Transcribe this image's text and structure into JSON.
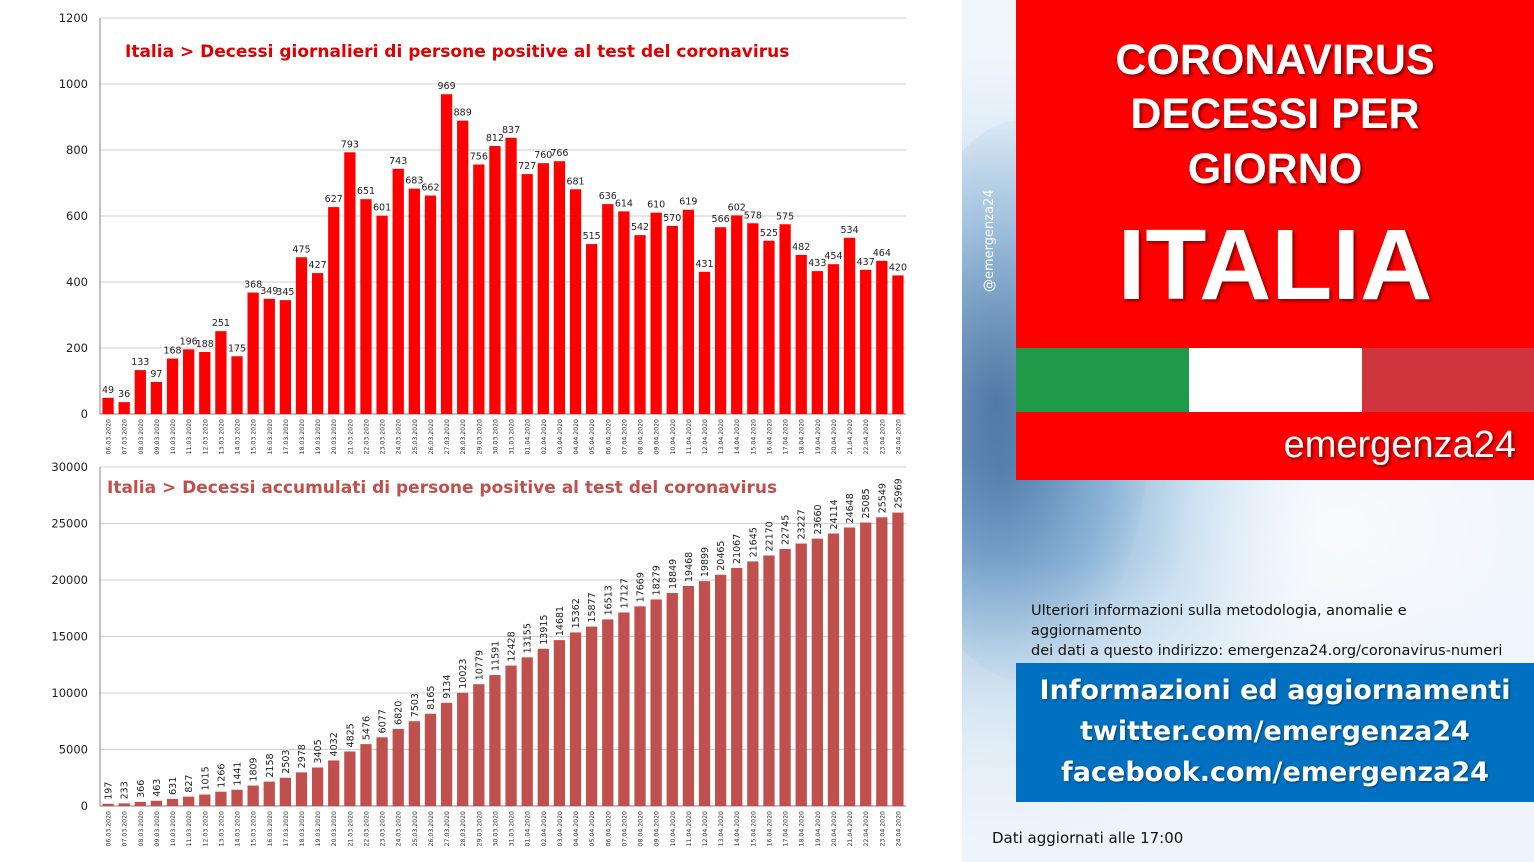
{
  "panel": {
    "handle": "@emergenza24",
    "title_line1": "CORONAVIRUS",
    "title_line2": "DECESSI PER",
    "title_line3": "GIORNO",
    "country": "ITALIA",
    "brand": "emergenza24",
    "info_line1": "Ulteriori informazioni sulla metodologia, anomalie e aggiornamento",
    "info_line2": "dei dati a questo indirizzo: emergenza24.org/coronavirus-numeri",
    "follow_line1": "Informazioni ed aggiornamenti",
    "follow_line2": "twitter.com/emergenza24",
    "follow_line3": "facebook.com/emergenza24",
    "updated": "Dati aggiornati alle 17:00",
    "flag_colors": [
      "#1f9a48",
      "#ffffff",
      "#d0343c"
    ]
  },
  "dates": [
    "06.03.2020",
    "07.03.2020",
    "08.03.2020",
    "09.03.2020",
    "10.03.2020",
    "11.03.2020",
    "12.03.2020",
    "13.03.2020",
    "14.03.2020",
    "15.03.2020",
    "16.03.2020",
    "17.03.2020",
    "18.03.2020",
    "19.03.2020",
    "20.03.2020",
    "21.03.2020",
    "22.03.2020",
    "23.03.2020",
    "24.03.2020",
    "25.03.2020",
    "26.03.2020",
    "27.03.2020",
    "28.03.2020",
    "29.03.2020",
    "30.03.2020",
    "31.03.2020",
    "01.04.2020",
    "02.04.2020",
    "03.04.2020",
    "04.04.2020",
    "05.04.2020",
    "06.04.2020",
    "07.04.2020",
    "08.04.2020",
    "09.04.2020",
    "10.04.2020",
    "11.04.2020",
    "12.04.2020",
    "13.04.2020",
    "14.04.2020",
    "15.04.2020",
    "16.04.2020",
    "17.04.2020",
    "18.04.2020",
    "19.04.2020",
    "20.04.2020",
    "21.04.2020",
    "22.04.2020",
    "23.04.2020",
    "24.04.2020"
  ],
  "chart_data": [
    {
      "type": "bar",
      "title": "Italia > Decessi giornalieri di persone positive al test del coronavirus",
      "ylim": [
        0,
        1200
      ],
      "yticks": [
        0,
        200,
        400,
        600,
        800,
        1000,
        1200
      ],
      "color": "#ff0000",
      "grid": true,
      "values": [
        49,
        36,
        133,
        97,
        168,
        196,
        188,
        251,
        175,
        368,
        349,
        345,
        475,
        427,
        627,
        793,
        651,
        601,
        743,
        683,
        662,
        969,
        889,
        756,
        812,
        837,
        727,
        760,
        766,
        681,
        515,
        636,
        614,
        542,
        610,
        570,
        619,
        431,
        566,
        602,
        578,
        525,
        575,
        482,
        433,
        454,
        534,
        437,
        464,
        420
      ]
    },
    {
      "type": "bar",
      "title": "Italia > Decessi accumulati di persone positive al test del coronavirus",
      "ylim": [
        0,
        30000
      ],
      "yticks": [
        0,
        5000,
        10000,
        15000,
        20000,
        25000,
        30000
      ],
      "color": "#c0504d",
      "grid": true,
      "values": [
        197,
        233,
        366,
        463,
        631,
        827,
        1015,
        1266,
        1441,
        1809,
        2158,
        2503,
        2978,
        3405,
        4032,
        4825,
        5476,
        6077,
        6820,
        7503,
        8165,
        9134,
        10023,
        10779,
        11591,
        12428,
        13155,
        13915,
        14681,
        15362,
        15877,
        16513,
        17127,
        17669,
        18279,
        18849,
        19468,
        19899,
        20465,
        21067,
        21645,
        22170,
        22745,
        23227,
        23660,
        24114,
        24648,
        25085,
        25549,
        25969
      ]
    }
  ]
}
